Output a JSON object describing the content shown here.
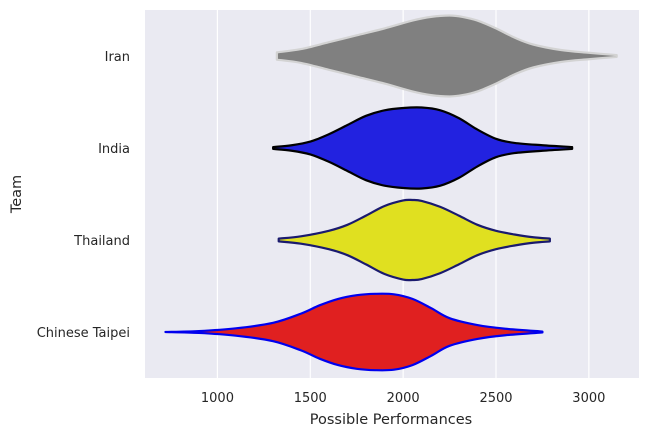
{
  "chart_data": {
    "type": "violin",
    "orientation": "horizontal",
    "xlabel": "Possible Performances",
    "ylabel": "Team",
    "xlim": [
      610,
      3270
    ],
    "xticks": [
      1000,
      1500,
      2000,
      2500,
      3000
    ],
    "grid": true,
    "background": "#eaeaf2",
    "grid_color": "#ffffff",
    "categories": [
      "Iran",
      "India",
      "Thailand",
      "Chinese Taipei"
    ],
    "series": [
      {
        "name": "Iran",
        "fill": "#808080",
        "edge": "#d3d3d3",
        "min": 1320,
        "max": 3150,
        "profile": [
          [
            1320,
            0.08
          ],
          [
            1450,
            0.15
          ],
          [
            1600,
            0.3
          ],
          [
            1750,
            0.45
          ],
          [
            1900,
            0.6
          ],
          [
            2050,
            0.77
          ],
          [
            2150,
            0.85
          ],
          [
            2250,
            0.88
          ],
          [
            2320,
            0.85
          ],
          [
            2400,
            0.77
          ],
          [
            2500,
            0.6
          ],
          [
            2600,
            0.4
          ],
          [
            2700,
            0.25
          ],
          [
            2850,
            0.13
          ],
          [
            3000,
            0.07
          ],
          [
            3150,
            0.02
          ]
        ]
      },
      {
        "name": "India",
        "fill": "#2222e0",
        "edge": "#000000",
        "min": 1300,
        "max": 2910,
        "profile": [
          [
            1300,
            0.02
          ],
          [
            1400,
            0.06
          ],
          [
            1500,
            0.14
          ],
          [
            1600,
            0.3
          ],
          [
            1700,
            0.5
          ],
          [
            1800,
            0.7
          ],
          [
            1900,
            0.82
          ],
          [
            2000,
            0.87
          ],
          [
            2100,
            0.88
          ],
          [
            2200,
            0.82
          ],
          [
            2300,
            0.65
          ],
          [
            2400,
            0.4
          ],
          [
            2500,
            0.2
          ],
          [
            2600,
            0.11
          ],
          [
            2750,
            0.06
          ],
          [
            2910,
            0.02
          ]
        ]
      },
      {
        "name": "Thailand",
        "fill": "#e0e020",
        "edge": "#1a1a6e",
        "min": 1330,
        "max": 2790,
        "profile": [
          [
            1330,
            0.03
          ],
          [
            1450,
            0.08
          ],
          [
            1600,
            0.2
          ],
          [
            1700,
            0.33
          ],
          [
            1800,
            0.53
          ],
          [
            1900,
            0.74
          ],
          [
            2000,
            0.86
          ],
          [
            2050,
            0.87
          ],
          [
            2100,
            0.85
          ],
          [
            2200,
            0.72
          ],
          [
            2300,
            0.53
          ],
          [
            2400,
            0.33
          ],
          [
            2500,
            0.2
          ],
          [
            2600,
            0.12
          ],
          [
            2700,
            0.06
          ],
          [
            2790,
            0.03
          ]
        ]
      },
      {
        "name": "Chinese Taipei",
        "fill": "#e02020",
        "edge": "#0000ee",
        "min": 720,
        "max": 2750,
        "profile": [
          [
            720,
            0.0
          ],
          [
            900,
            0.02
          ],
          [
            1100,
            0.08
          ],
          [
            1300,
            0.2
          ],
          [
            1450,
            0.4
          ],
          [
            1550,
            0.58
          ],
          [
            1650,
            0.72
          ],
          [
            1750,
            0.8
          ],
          [
            1850,
            0.83
          ],
          [
            1950,
            0.82
          ],
          [
            2050,
            0.72
          ],
          [
            2150,
            0.52
          ],
          [
            2250,
            0.3
          ],
          [
            2400,
            0.15
          ],
          [
            2550,
            0.07
          ],
          [
            2750,
            0.01
          ]
        ]
      }
    ]
  }
}
